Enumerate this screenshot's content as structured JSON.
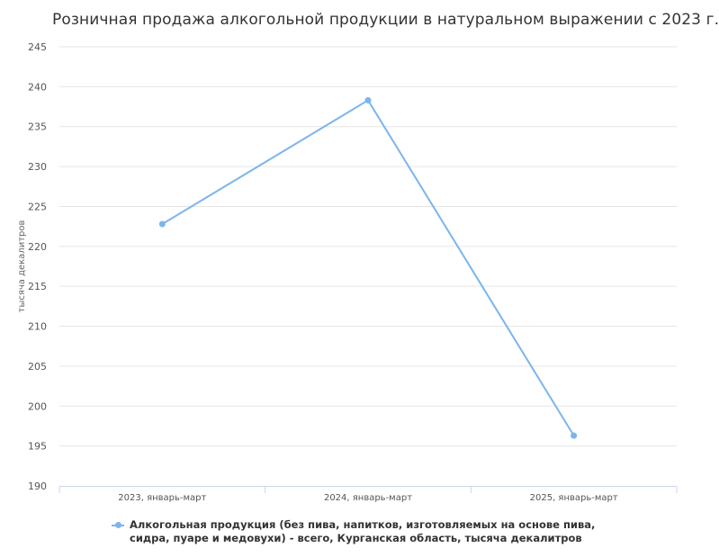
{
  "chart_data": {
    "type": "line",
    "title": "Розничная продажа алкогольной продукции в натуральном выражении с 2023 г.",
    "ylabel": "тысяча декалитров",
    "xlabel": "",
    "categories": [
      "2023, январь-март",
      "2024, январь-март",
      "2025, январь-март"
    ],
    "series": [
      {
        "name": "Алкогольная продукция (без пива, напитков, изготовляемых на основе пива, сидра, пуаре и медовухи) - всего, Курганская область, тысяча декалитров",
        "values": [
          222.8,
          238.3,
          196.3
        ],
        "color": "#7cb5ec"
      }
    ],
    "ylim": [
      190,
      245
    ],
    "yticks": [
      "190",
      "195",
      "200",
      "205",
      "210",
      "215",
      "220",
      "225",
      "230",
      "235",
      "240",
      "245"
    ],
    "grid": true,
    "legend": "bottom"
  }
}
